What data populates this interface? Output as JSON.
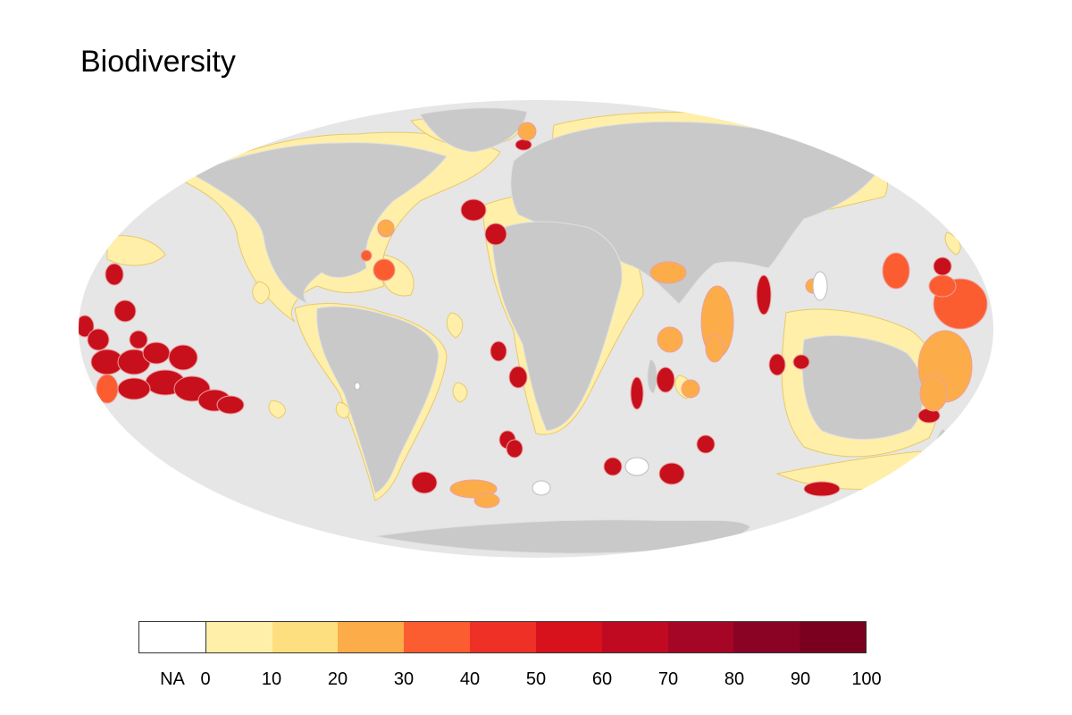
{
  "title": "Biodiversity",
  "colors": {
    "ocean": "#e6e6e6",
    "land": "#c9c9c9",
    "land_border": "#e0e0e0",
    "na": "#ffffff"
  },
  "legend": {
    "na_label": "NA",
    "ticks": [
      "0",
      "10",
      "20",
      "30",
      "40",
      "50",
      "60",
      "70",
      "80",
      "90",
      "100"
    ],
    "bins": [
      {
        "range": "0-10",
        "color": "#ffefa8"
      },
      {
        "range": "10-20",
        "color": "#fedf7f"
      },
      {
        "range": "20-30",
        "color": "#fdac4a"
      },
      {
        "range": "30-40",
        "color": "#fc5d30"
      },
      {
        "range": "40-50",
        "color": "#ee3026"
      },
      {
        "range": "50-60",
        "color": "#d7121d"
      },
      {
        "range": "60-70",
        "color": "#c00a22"
      },
      {
        "range": "70-80",
        "color": "#a50626"
      },
      {
        "range": "80-90",
        "color": "#8b0324"
      },
      {
        "range": "90-100",
        "color": "#7b0020"
      }
    ]
  }
}
